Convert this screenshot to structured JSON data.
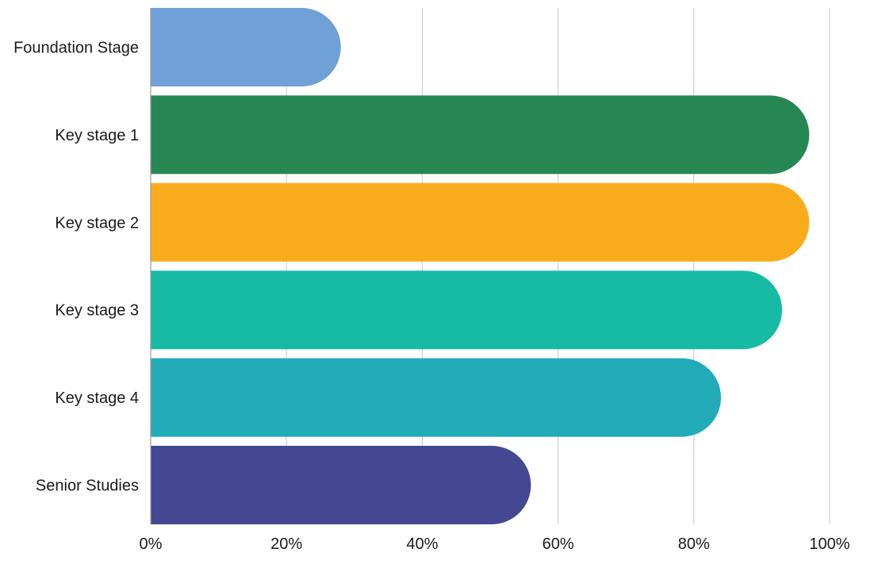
{
  "chart_data": {
    "type": "bar",
    "orientation": "horizontal",
    "title": "",
    "xlabel": "",
    "ylabel": "",
    "categories": [
      "Foundation Stage",
      "Key stage 1",
      "Key stage 2",
      "Key stage 3",
      "Key stage 4",
      "Senior Studies"
    ],
    "values": [
      28,
      97,
      97,
      93,
      84,
      56
    ],
    "colors": [
      "#6FA0D6",
      "#268753",
      "#F9AC1B",
      "#17BBA3",
      "#21ABB9",
      "#444792"
    ],
    "xlim": [
      0,
      100
    ],
    "xticks": [
      0,
      20,
      40,
      60,
      80,
      100
    ],
    "xtick_labels": [
      "0%",
      "20%",
      "40%",
      "60%",
      "80%",
      "100%"
    ],
    "grid": "vertical",
    "bar_end_style": "rounded",
    "legend": "none"
  }
}
